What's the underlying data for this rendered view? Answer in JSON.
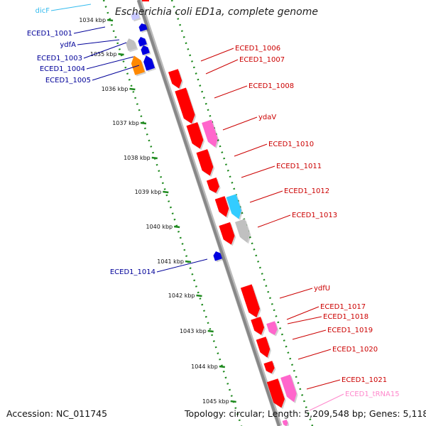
{
  "title": "Escherichia coli ED1a, complete genome",
  "footer": {
    "accession": "Accession: NC_011745",
    "summary": "Topology: circular; Length: 5,209,548 bp; Genes: 5,118"
  },
  "colors": {
    "backbone": "#888888",
    "track_dots": "#1f8a1f",
    "cds_forward": "#ff0000",
    "cds_reverse": "#0000e0",
    "pseudo": "#c0c0c0",
    "trna": "#ff66cc",
    "ncrna": "#33ccff",
    "orange_feature": "#ff8800",
    "label_forward": "#cc0000",
    "label_reverse": "#000099",
    "label_ncrna": "#33bbee",
    "label_trna": "#ff88cc"
  },
  "ticks": [
    "1034 kbp",
    "1035 kbp",
    "1036 kbp",
    "1037 kbp",
    "1038 kbp",
    "1039 kbp",
    "1040 kbp",
    "1041 kbp",
    "1042 kbp",
    "1043 kbp",
    "1044 kbp",
    "1045 kbp"
  ],
  "left_labels": [
    {
      "text": "dicF",
      "kind": "ncrna"
    },
    {
      "text": "ECED1_1001",
      "kind": "reverse"
    },
    {
      "text": "ydfA",
      "kind": "reverse"
    },
    {
      "text": "ECED1_1003",
      "kind": "reverse"
    },
    {
      "text": "ECED1_1004",
      "kind": "reverse"
    },
    {
      "text": "ECED1_1005",
      "kind": "reverse"
    },
    {
      "text": "ECED1_1014",
      "kind": "reverse"
    }
  ],
  "right_labels": [
    {
      "text": "ECED1_1006",
      "kind": "forward"
    },
    {
      "text": "ECED1_1007",
      "kind": "forward"
    },
    {
      "text": "ECED1_1008",
      "kind": "forward"
    },
    {
      "text": "ydaV",
      "kind": "forward"
    },
    {
      "text": "ECED1_1010",
      "kind": "forward"
    },
    {
      "text": "ECED1_1011",
      "kind": "forward"
    },
    {
      "text": "ECED1_1012",
      "kind": "forward"
    },
    {
      "text": "ECED1_1013",
      "kind": "forward"
    },
    {
      "text": "ydfU",
      "kind": "forward"
    },
    {
      "text": "ECED1_1017",
      "kind": "forward"
    },
    {
      "text": "ECED1_1018",
      "kind": "forward"
    },
    {
      "text": "ECED1_1019",
      "kind": "forward"
    },
    {
      "text": "ECED1_1020",
      "kind": "forward"
    },
    {
      "text": "ECED1_1021",
      "kind": "forward"
    },
    {
      "text": "ECED1_tRNA15",
      "kind": "trna"
    }
  ]
}
